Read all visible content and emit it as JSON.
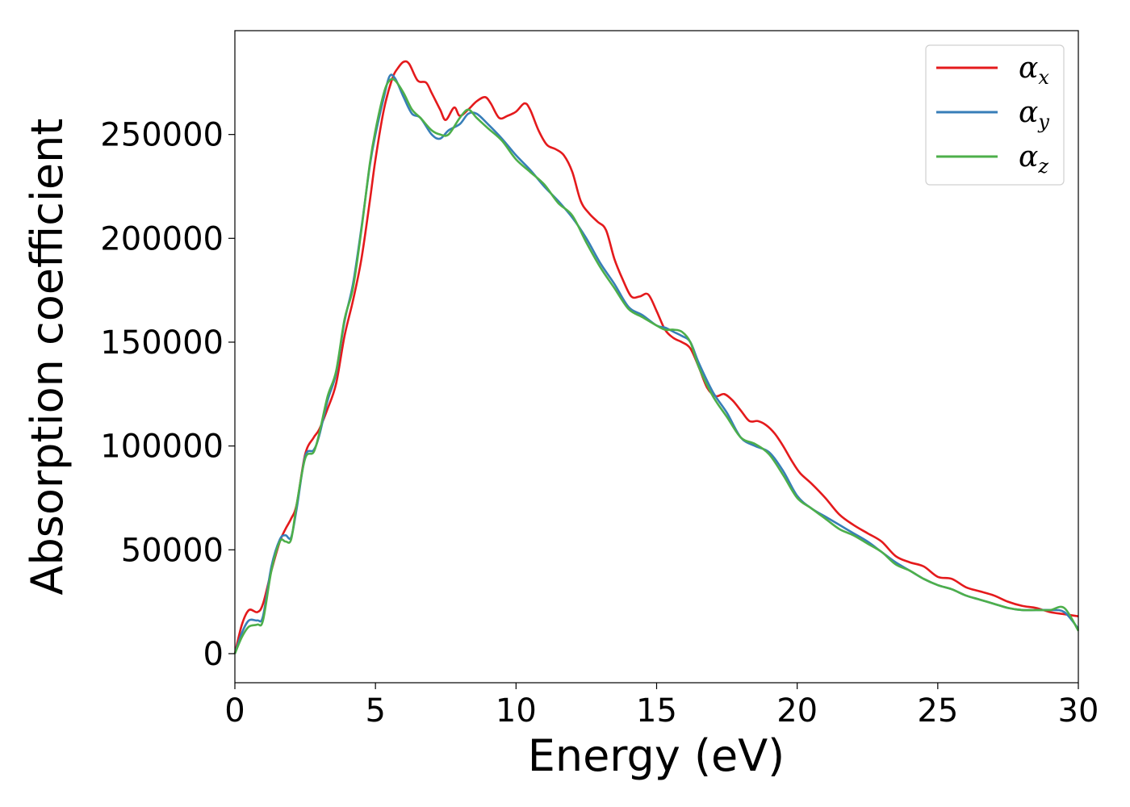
{
  "chart_data": {
    "type": "line",
    "title": "",
    "xlabel": "Energy (eV)",
    "ylabel": "Absorption coefficient",
    "xlim": [
      0,
      30
    ],
    "ylim": [
      -14000,
      300000
    ],
    "x_ticks": [
      0,
      5,
      10,
      15,
      20,
      25,
      30
    ],
    "y_ticks": [
      0,
      50000,
      100000,
      150000,
      200000,
      250000
    ],
    "grid": false,
    "legend_position": "top-right",
    "series": [
      {
        "name": "α",
        "subscript": "x",
        "color": "#e41a1c",
        "x": [
          0,
          0.25,
          0.5,
          0.8,
          1.0,
          1.3,
          1.6,
          1.8,
          2.0,
          2.2,
          2.5,
          2.8,
          3.0,
          3.3,
          3.6,
          3.9,
          4.2,
          4.5,
          4.8,
          5.0,
          5.3,
          5.6,
          5.8,
          6.0,
          6.2,
          6.5,
          6.8,
          7.0,
          7.3,
          7.5,
          7.8,
          8.0,
          8.3,
          8.6,
          8.9,
          9.1,
          9.4,
          9.7,
          10.0,
          10.3,
          10.5,
          10.8,
          11.1,
          11.4,
          11.7,
          12.0,
          12.3,
          12.6,
          12.9,
          13.2,
          13.5,
          13.8,
          14.1,
          14.4,
          14.7,
          15.0,
          15.3,
          15.6,
          15.9,
          16.2,
          16.5,
          16.8,
          17.1,
          17.4,
          17.7,
          18.0,
          18.3,
          18.6,
          18.9,
          19.2,
          19.5,
          19.8,
          20.1,
          20.5,
          21.0,
          21.5,
          22.0,
          22.5,
          23.0,
          23.5,
          24.0,
          24.5,
          25.0,
          25.5,
          26.0,
          26.5,
          27.0,
          27.5,
          28.0,
          28.5,
          29.0,
          29.5,
          30.0
        ],
        "values": [
          0,
          14000,
          21000,
          20000,
          24000,
          40000,
          54000,
          60000,
          65000,
          72000,
          96000,
          104000,
          108000,
          118000,
          130000,
          153000,
          170000,
          190000,
          218000,
          238000,
          262000,
          277000,
          282000,
          285000,
          284000,
          276000,
          275000,
          270000,
          262000,
          257000,
          263000,
          259000,
          262000,
          266000,
          268000,
          265000,
          258000,
          259000,
          261000,
          265000,
          262000,
          252000,
          245000,
          243000,
          240000,
          232000,
          218000,
          212000,
          208000,
          204000,
          190000,
          180000,
          172000,
          172000,
          173000,
          165000,
          156000,
          152000,
          150000,
          147000,
          138000,
          128000,
          124000,
          125000,
          122000,
          117000,
          112000,
          112000,
          110000,
          106000,
          100000,
          93000,
          87000,
          82000,
          75000,
          67000,
          62000,
          58000,
          54000,
          47000,
          44000,
          42000,
          37000,
          36000,
          32000,
          30000,
          28000,
          25000,
          23000,
          22000,
          20000,
          19000,
          18000
        ]
      },
      {
        "name": "α",
        "subscript": "y",
        "color": "#377eb8",
        "x": [
          0,
          0.25,
          0.5,
          0.8,
          1.0,
          1.3,
          1.6,
          1.8,
          2.0,
          2.2,
          2.5,
          2.8,
          3.0,
          3.3,
          3.6,
          3.9,
          4.2,
          4.5,
          4.8,
          5.0,
          5.3,
          5.5,
          5.7,
          6.0,
          6.3,
          6.6,
          7.0,
          7.3,
          7.6,
          8.0,
          8.3,
          8.6,
          9.0,
          9.5,
          10.0,
          10.5,
          11.0,
          11.5,
          12.0,
          12.5,
          13.0,
          13.5,
          14.0,
          14.5,
          15.0,
          15.3,
          15.6,
          15.9,
          16.2,
          16.5,
          17.0,
          17.5,
          18.0,
          18.5,
          19.0,
          19.5,
          20.0,
          20.5,
          21.0,
          21.5,
          22.0,
          22.5,
          23.0,
          23.5,
          24.0,
          24.5,
          25.0,
          25.5,
          26.0,
          26.5,
          27.0,
          27.5,
          28.0,
          28.5,
          29.0,
          29.5,
          30.0
        ],
        "values": [
          0,
          10000,
          16000,
          16000,
          18000,
          42000,
          55000,
          57000,
          56000,
          70000,
          95000,
          98000,
          105000,
          122000,
          135000,
          160000,
          178000,
          205000,
          235000,
          250000,
          268000,
          278000,
          277000,
          268000,
          260000,
          258000,
          250000,
          248000,
          252000,
          255000,
          260000,
          260000,
          255000,
          248000,
          240000,
          233000,
          225000,
          218000,
          210000,
          200000,
          188000,
          178000,
          167000,
          163000,
          158000,
          157000,
          155000,
          153000,
          150000,
          140000,
          126000,
          116000,
          104000,
          100000,
          97000,
          88000,
          76000,
          70000,
          66000,
          62000,
          58000,
          54000,
          49000,
          44000,
          40000,
          36000,
          33000,
          31000,
          28000,
          26000,
          24000,
          22000,
          21000,
          21000,
          21000,
          20000,
          12000
        ]
      },
      {
        "name": "α",
        "subscript": "z",
        "color": "#4daf4a",
        "x": [
          0,
          0.25,
          0.5,
          0.8,
          1.0,
          1.3,
          1.6,
          1.8,
          2.0,
          2.2,
          2.5,
          2.8,
          3.0,
          3.3,
          3.6,
          3.9,
          4.2,
          4.5,
          4.8,
          5.0,
          5.3,
          5.5,
          5.7,
          6.0,
          6.3,
          6.6,
          7.0,
          7.3,
          7.6,
          8.0,
          8.3,
          8.6,
          9.0,
          9.5,
          10.0,
          10.5,
          11.0,
          11.5,
          12.0,
          12.5,
          13.0,
          13.5,
          14.0,
          14.5,
          15.0,
          15.3,
          15.6,
          15.9,
          16.2,
          16.5,
          17.0,
          17.5,
          18.0,
          18.5,
          19.0,
          19.5,
          20.0,
          20.5,
          21.0,
          21.5,
          22.0,
          22.5,
          23.0,
          23.5,
          24.0,
          24.5,
          25.0,
          25.5,
          26.0,
          26.5,
          27.0,
          27.5,
          28.0,
          28.5,
          29.0,
          29.5,
          30.0
        ],
        "values": [
          0,
          8000,
          13000,
          14000,
          16000,
          40000,
          54000,
          54000,
          55000,
          72000,
          94000,
          97000,
          106000,
          124000,
          136000,
          161000,
          176000,
          204000,
          236000,
          252000,
          270000,
          276000,
          276000,
          270000,
          262000,
          258000,
          252000,
          250000,
          250000,
          258000,
          262000,
          258000,
          253000,
          247000,
          238000,
          232000,
          226000,
          217000,
          211000,
          198000,
          186000,
          176000,
          166000,
          162000,
          158000,
          156000,
          156000,
          155000,
          150000,
          138000,
          124000,
          114000,
          104000,
          101000,
          96000,
          86000,
          75000,
          70000,
          65000,
          60000,
          57000,
          53000,
          49000,
          43000,
          40000,
          36000,
          33000,
          31000,
          28000,
          26000,
          24000,
          22000,
          21000,
          21000,
          21000,
          22000,
          11000
        ]
      }
    ]
  }
}
